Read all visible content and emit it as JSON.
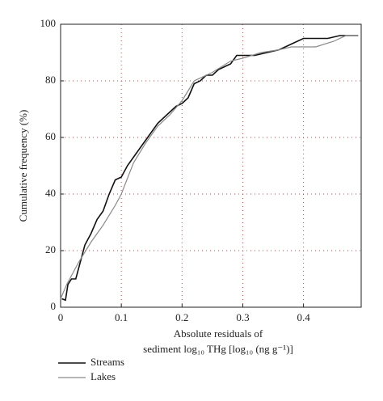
{
  "chart_data": {
    "type": "line",
    "xlabel": [
      "Absolute residuals of",
      "sediment log₁₀ THg [log₁₀ (ng g⁻¹)]"
    ],
    "ylabel": "Cumulative frequency (%)",
    "xlim": [
      0,
      0.495
    ],
    "ylim": [
      0,
      100
    ],
    "xticks": [
      0,
      0.1,
      0.2,
      0.3,
      0.4
    ],
    "yticks": [
      0,
      20,
      40,
      60,
      80,
      100
    ],
    "grid": true,
    "legend": "bottom-left",
    "series": [
      {
        "name": "Streams",
        "color": "#111111",
        "x": [
          0.002,
          0.008,
          0.012,
          0.018,
          0.025,
          0.03,
          0.04,
          0.05,
          0.06,
          0.07,
          0.08,
          0.09,
          0.1,
          0.11,
          0.12,
          0.13,
          0.14,
          0.15,
          0.16,
          0.17,
          0.18,
          0.19,
          0.2,
          0.21,
          0.22,
          0.23,
          0.24,
          0.25,
          0.26,
          0.27,
          0.28,
          0.29,
          0.3,
          0.32,
          0.34,
          0.36,
          0.38,
          0.4,
          0.42,
          0.44,
          0.46,
          0.48,
          0.49
        ],
        "values": [
          3,
          2.5,
          8,
          10,
          10,
          14,
          22,
          26,
          31,
          34,
          40,
          45,
          46,
          50,
          53,
          56,
          59,
          62,
          65,
          67,
          69,
          71,
          72,
          74,
          79,
          80,
          82,
          82,
          84,
          85,
          86,
          89,
          89,
          89,
          90,
          91,
          93,
          95,
          95,
          95,
          96,
          96,
          96
        ]
      },
      {
        "name": "Lakes",
        "color": "#8a8a8a",
        "x": [
          0,
          0.01,
          0.03,
          0.05,
          0.07,
          0.09,
          0.1,
          0.12,
          0.14,
          0.16,
          0.18,
          0.2,
          0.22,
          0.25,
          0.28,
          0.3,
          0.33,
          0.36,
          0.38,
          0.42,
          0.45,
          0.47,
          0.49
        ],
        "values": [
          3,
          8,
          16,
          23,
          29,
          36,
          40,
          51,
          58,
          64,
          68,
          73,
          80,
          83,
          87,
          88,
          90,
          91,
          92,
          92,
          94,
          96,
          96
        ]
      }
    ]
  }
}
